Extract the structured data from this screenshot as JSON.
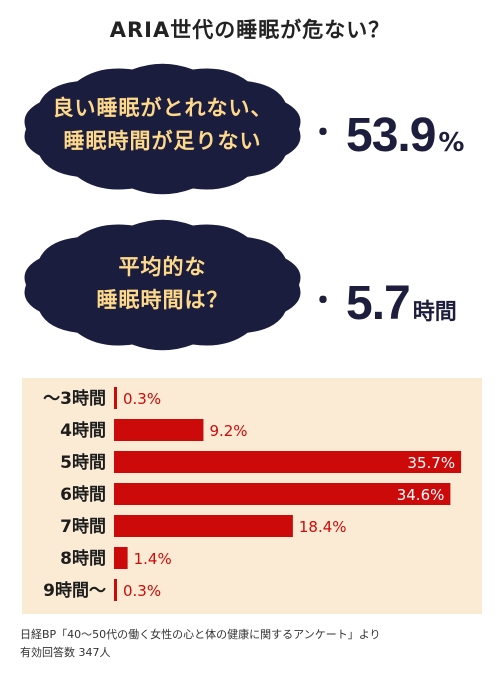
{
  "title": "ARIA世代の睡眠が危ない？",
  "stat1": {
    "lines": [
      "良い睡眠がとれない、",
      "睡眠時間が足りない"
    ],
    "dot": "・",
    "value": "53.9",
    "unit": "%"
  },
  "stat2": {
    "lines": [
      "平均的な",
      "睡眠時間は？"
    ],
    "dot": "・",
    "value": "5.7",
    "unit": "時間"
  },
  "colors": {
    "cloud": "#1b1d3f",
    "cloud_text": "#ffd98a",
    "bar": "#cc0a0a",
    "panel": "#fbebd4"
  },
  "chart_data": {
    "type": "bar",
    "orientation": "horizontal",
    "categories": [
      "～3時間",
      "4時間",
      "5時間",
      "6時間",
      "7時間",
      "8時間",
      "9時間～"
    ],
    "values": [
      0.3,
      9.2,
      35.7,
      34.6,
      18.4,
      1.4,
      0.3
    ],
    "value_labels": [
      "0.3%",
      "9.2%",
      "35.7%",
      "34.6%",
      "18.4%",
      "1.4%",
      "0.3%"
    ],
    "xlim": [
      0,
      36
    ]
  },
  "footnote": {
    "line1": "日経BP「40～50代の働く女性の心と体の健康に関するアンケート」より",
    "line2": "有効回答数 347人"
  }
}
